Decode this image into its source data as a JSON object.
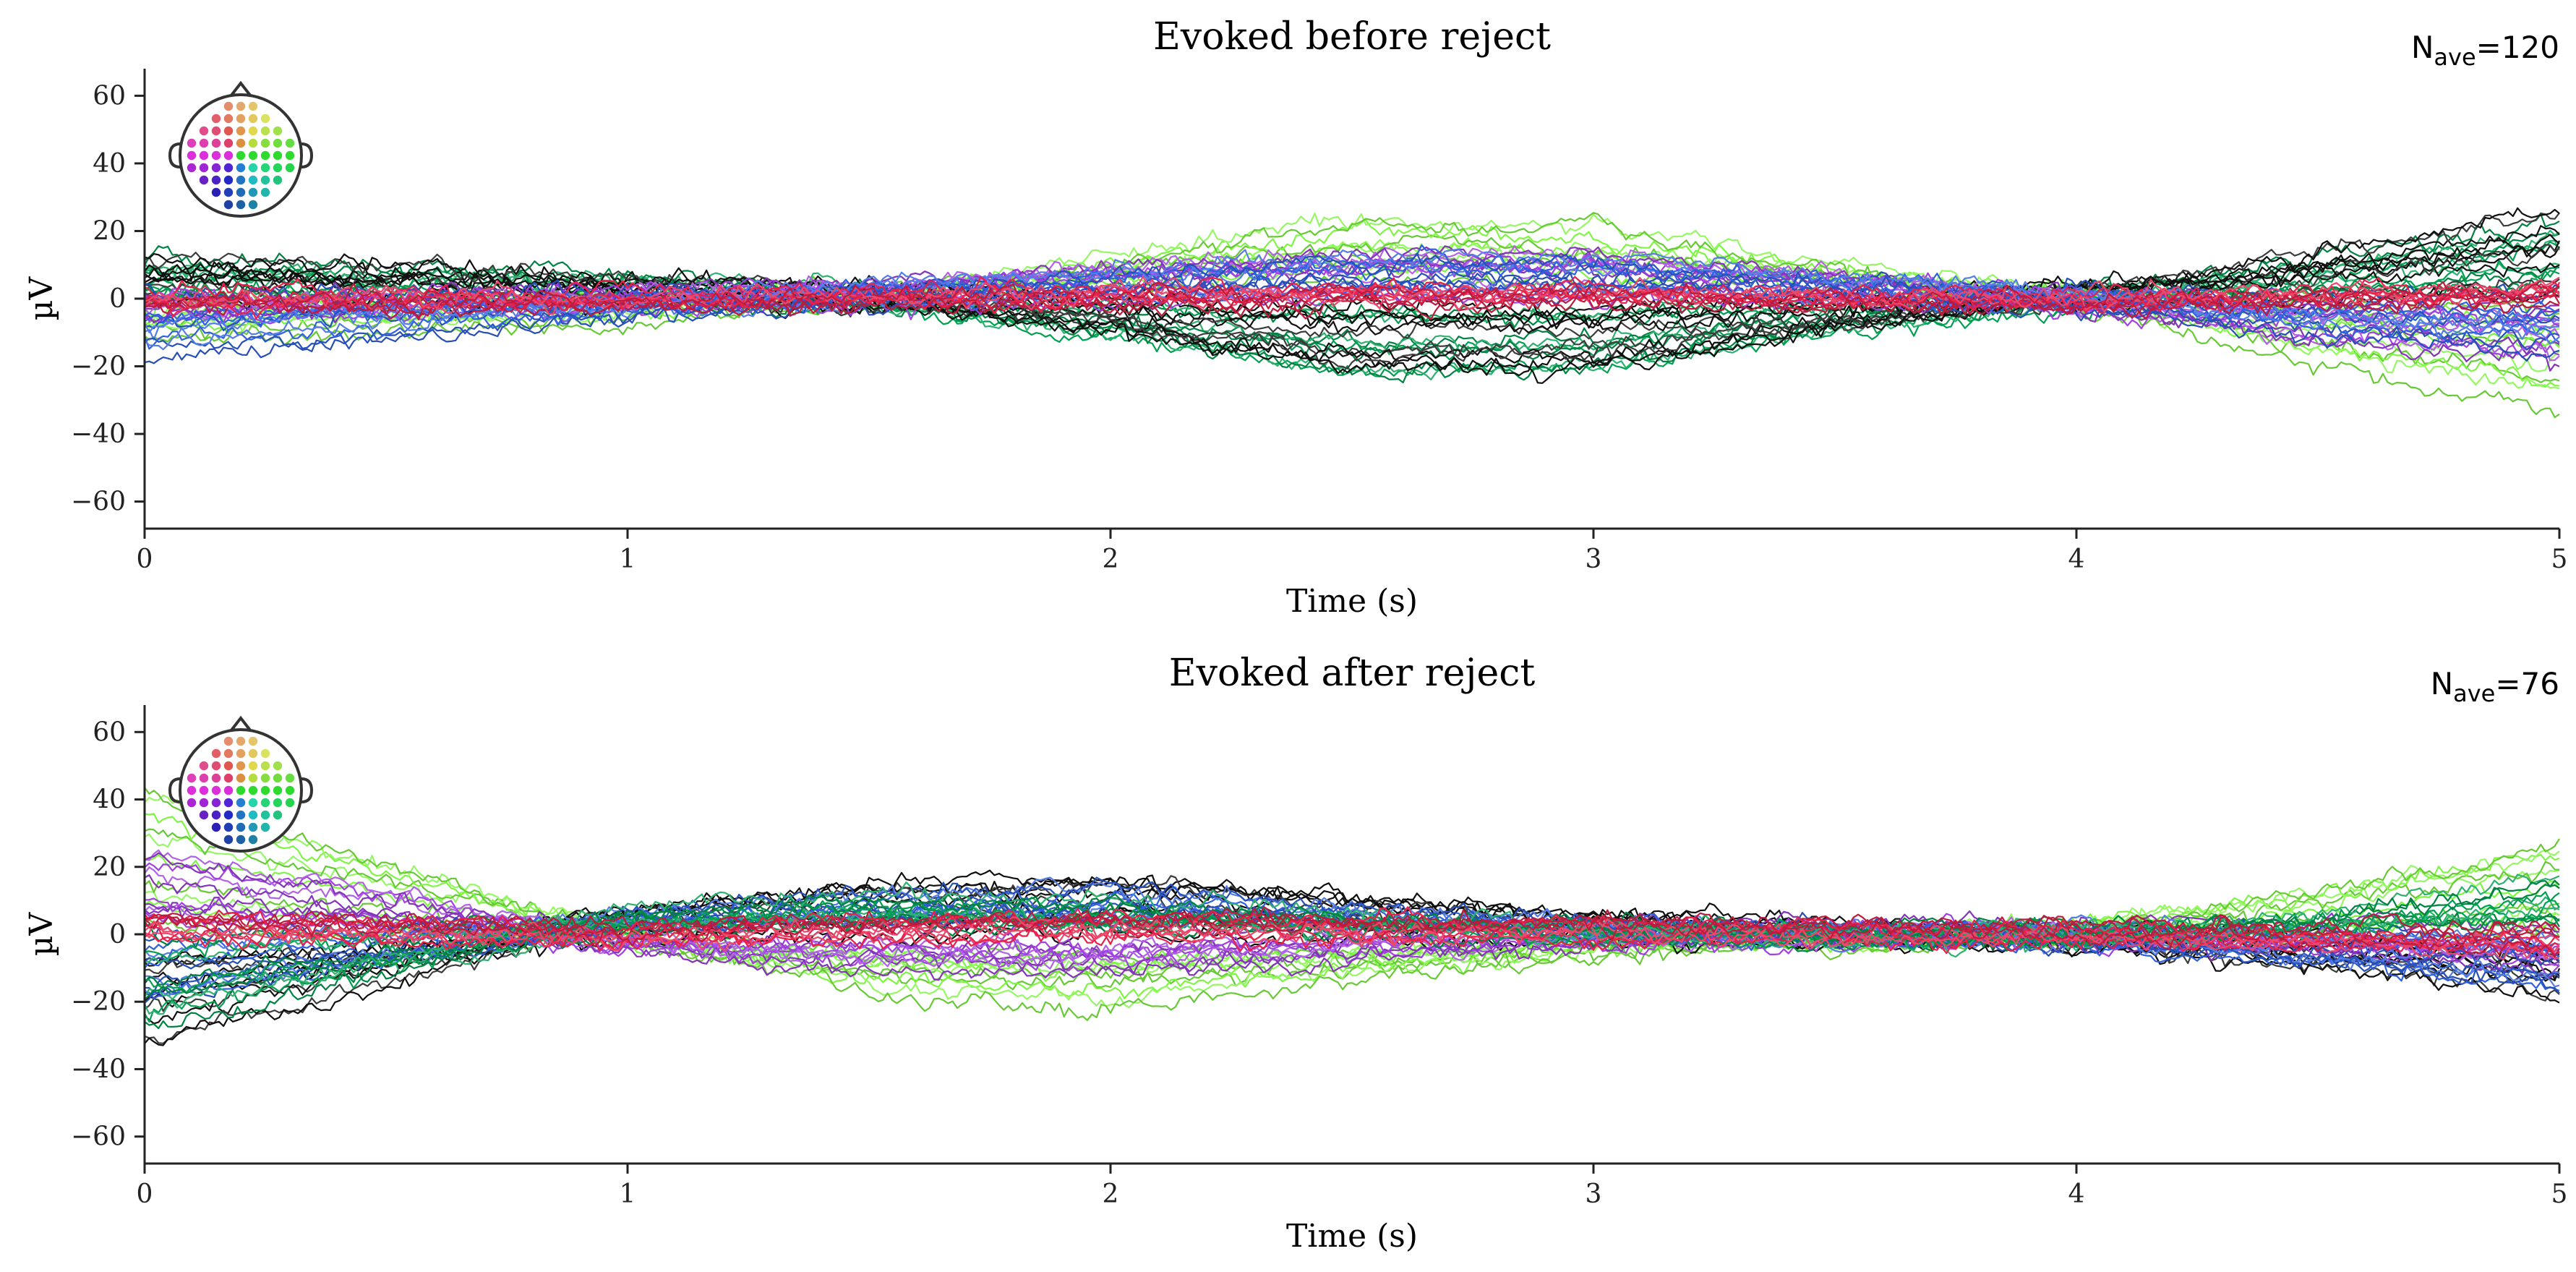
{
  "chart_data": [
    {
      "type": "line",
      "title": "Evoked before reject",
      "nave": {
        "base": "N",
        "sub": "ave",
        "value": "=120"
      },
      "xlabel": "Time (s)",
      "ylabel": "µV",
      "xlim": [
        0,
        5
      ],
      "ylim": [
        -68,
        68
      ],
      "xticks": [
        0,
        1,
        2,
        3,
        4,
        5
      ],
      "yticks": [
        -60,
        -40,
        -20,
        0,
        20,
        40,
        60
      ],
      "ytick_labels": [
        "−60",
        "−40",
        "−20",
        "0",
        "20",
        "40",
        "60"
      ],
      "n_channels": 60,
      "legend": "sensor-layout-inset-top-left",
      "series_keypoints_note": "approx. envelope of channel traces (µV) at t = 0, 0.5, ..., 5 s",
      "x": [
        0,
        0.5,
        1,
        1.5,
        2,
        2.5,
        3,
        3.5,
        4,
        4.5,
        5
      ],
      "series": [
        {
          "name": "ch-group-green-top",
          "color": "#7ef542",
          "values": [
            -10,
            -8,
            -6,
            0,
            12,
            24,
            22,
            10,
            0,
            -18,
            -32
          ]
        },
        {
          "name": "ch-group-green-bottom",
          "color": "#00a050",
          "values": [
            10,
            8,
            5,
            0,
            -12,
            -24,
            -22,
            -10,
            0,
            10,
            22
          ]
        },
        {
          "name": "ch-group-black",
          "color": "#111111",
          "values": [
            12,
            10,
            6,
            2,
            -8,
            -20,
            -20,
            -8,
            2,
            14,
            27
          ]
        },
        {
          "name": "ch-group-purple",
          "color": "#a040e0",
          "values": [
            -4,
            -2,
            0,
            4,
            10,
            14,
            14,
            8,
            -2,
            -12,
            -18
          ]
        },
        {
          "name": "ch-group-blue",
          "color": "#3060e0",
          "values": [
            -16,
            -10,
            -4,
            2,
            8,
            12,
            12,
            6,
            0,
            -10,
            -14
          ]
        },
        {
          "name": "ch-group-red",
          "color": "#e8204a",
          "values": [
            0,
            1,
            0,
            2,
            2,
            3,
            3,
            1,
            0,
            2,
            4
          ]
        }
      ]
    },
    {
      "type": "line",
      "title": "Evoked after reject",
      "nave": {
        "base": "N",
        "sub": "ave",
        "value": "=76"
      },
      "xlabel": "Time (s)",
      "ylabel": "µV",
      "xlim": [
        0,
        5
      ],
      "ylim": [
        -68,
        68
      ],
      "xticks": [
        0,
        1,
        2,
        3,
        4,
        5
      ],
      "yticks": [
        -60,
        -40,
        -20,
        0,
        20,
        40,
        60
      ],
      "ytick_labels": [
        "−60",
        "−40",
        "−20",
        "0",
        "20",
        "40",
        "60"
      ],
      "n_channels": 60,
      "legend": "sensor-layout-inset-top-left",
      "series_keypoints_note": "approx. envelope of channel traces (µV) at t = 0, 0.5, ..., 5 s",
      "x": [
        0,
        0.5,
        1,
        1.5,
        2,
        2.5,
        3,
        3.5,
        4,
        4.5,
        5
      ],
      "series": [
        {
          "name": "ch-group-green-top",
          "color": "#7ef542",
          "values": [
            42,
            20,
            0,
            -18,
            -22,
            -14,
            -6,
            -2,
            2,
            12,
            27
          ]
        },
        {
          "name": "ch-group-black",
          "color": "#111111",
          "values": [
            -32,
            -14,
            8,
            16,
            18,
            12,
            6,
            2,
            -2,
            -8,
            -18
          ]
        },
        {
          "name": "ch-group-purple",
          "color": "#a040e0",
          "values": [
            24,
            12,
            -4,
            -10,
            -10,
            -6,
            -2,
            0,
            0,
            -4,
            -10
          ]
        },
        {
          "name": "ch-group-blue",
          "color": "#3060e0",
          "values": [
            -20,
            -8,
            6,
            12,
            14,
            8,
            2,
            0,
            -2,
            -8,
            -16
          ]
        },
        {
          "name": "ch-group-green-dark",
          "color": "#00a050",
          "values": [
            -26,
            -10,
            8,
            12,
            10,
            6,
            2,
            0,
            0,
            6,
            18
          ]
        },
        {
          "name": "ch-group-red",
          "color": "#e8204a",
          "values": [
            4,
            2,
            0,
            3,
            4,
            3,
            2,
            1,
            0,
            -2,
            -4
          ]
        }
      ]
    }
  ]
}
